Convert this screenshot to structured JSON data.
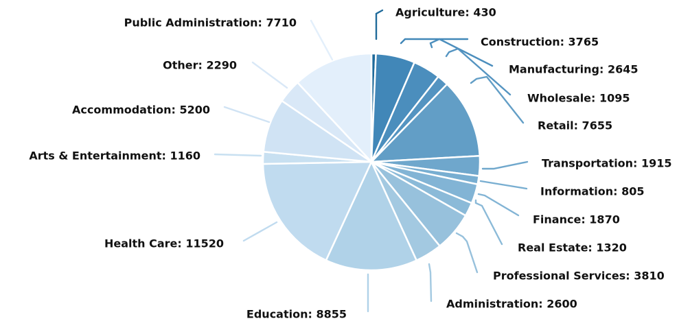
{
  "chart_data": {
    "type": "pie",
    "title": "",
    "start_angle_deg": 90,
    "direction": "clockwise",
    "slices": [
      {
        "label": "Agriculture",
        "value": 430,
        "display": "Agriculture: 430",
        "color": "#1f6a9a"
      },
      {
        "label": "Construction",
        "value": 3765,
        "display": "Construction: 3765",
        "color": "#4187b8"
      },
      {
        "label": "Manufacturing",
        "value": 2645,
        "display": "Manufacturing: 2645",
        "color": "#4b8ebd"
      },
      {
        "label": "Wholesale",
        "value": 1095,
        "display": "Wholesale: 1095",
        "color": "#5494c1"
      },
      {
        "label": "Retail",
        "value": 7655,
        "display": "Retail: 7655",
        "color": "#629ec6"
      },
      {
        "label": "Transportation",
        "value": 1915,
        "display": "Transportation: 1915",
        "color": "#6fa7cc"
      },
      {
        "label": "Information",
        "value": 805,
        "display": "Information: 805",
        "color": "#78aed1"
      },
      {
        "label": "Finance",
        "value": 1870,
        "display": "Finance: 1870",
        "color": "#82b4d5"
      },
      {
        "label": "Real Estate",
        "value": 1320,
        "display": "Real Estate: 1320",
        "color": "#8bbad8"
      },
      {
        "label": "Professional Services",
        "value": 3810,
        "display": "Professional Services: 3810",
        "color": "#97c1dc"
      },
      {
        "label": "Administration",
        "value": 2600,
        "display": "Administration: 2600",
        "color": "#a3c9e1"
      },
      {
        "label": "Education",
        "value": 8855,
        "display": "Education: 8855",
        "color": "#b0d2e8"
      },
      {
        "label": "Health Care",
        "value": 11520,
        "display": "Health Care: 11520",
        "color": "#c0dbef"
      },
      {
        "label": "Arts & Entertainment",
        "value": 1160,
        "display": "Arts & Entertainment: 1160",
        "color": "#c8e0f1"
      },
      {
        "label": "Accommodation",
        "value": 5200,
        "display": "Accommodation: 5200",
        "color": "#d0e3f4"
      },
      {
        "label": "Other",
        "value": 2290,
        "display": "Other: 2290",
        "color": "#d9e8f7"
      },
      {
        "label": "Public Administration",
        "value": 7710,
        "display": "Public Administration: 7710",
        "color": "#e3effb"
      }
    ]
  }
}
